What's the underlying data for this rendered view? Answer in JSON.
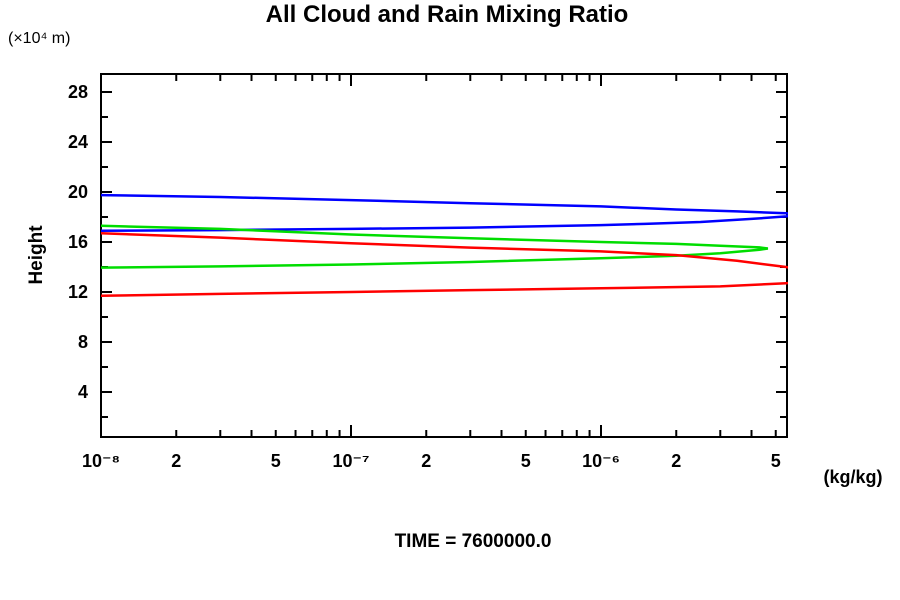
{
  "chart_data": {
    "type": "line",
    "title": "All Cloud and Rain Mixing Ratio",
    "footer": "TIME = 7600000.0",
    "x_scale": "log",
    "xlim": [
      1e-08,
      5.5e-06
    ],
    "ylim": [
      0,
      30
    ],
    "grid": false,
    "legend": "none",
    "x_axis": {
      "unit_label": "(kg/kg)",
      "decade_exponents": [
        -8,
        -7,
        -6
      ],
      "minor_multipliers": [
        2,
        3,
        4,
        5,
        6,
        7,
        8,
        9
      ],
      "tick_labels": [
        {
          "q": 1e-08,
          "text": "10⁻⁸"
        },
        {
          "q": 2e-08,
          "text": "2"
        },
        {
          "q": 5e-08,
          "text": "5"
        },
        {
          "q": 1e-07,
          "text": "10⁻⁷"
        },
        {
          "q": 2e-07,
          "text": "2"
        },
        {
          "q": 5e-07,
          "text": "5"
        },
        {
          "q": 1e-06,
          "text": "10⁻⁶"
        },
        {
          "q": 2e-06,
          "text": "2"
        },
        {
          "q": 5e-06,
          "text": "5"
        }
      ]
    },
    "y_axis": {
      "label": "Height",
      "unit_label": "(×10⁴ m)",
      "major_ticks": [
        4,
        8,
        12,
        16,
        20,
        24,
        28
      ],
      "minor_ticks": [
        2,
        6,
        10,
        14,
        18,
        22,
        26
      ]
    },
    "series": [
      {
        "name": "blue",
        "color": "#0000ff",
        "points": [
          [
            1e-08,
            19.75
          ],
          [
            3e-08,
            19.6
          ],
          [
            1e-07,
            19.35
          ],
          [
            3e-07,
            19.1
          ],
          [
            1e-06,
            18.85
          ],
          [
            2e-06,
            18.6
          ],
          [
            3.5e-06,
            18.45
          ],
          [
            5.5e-06,
            18.3
          ],
          [
            6.2e-06,
            18.18
          ],
          [
            5.5e-06,
            18.05
          ],
          [
            4e-06,
            17.85
          ],
          [
            2.5e-06,
            17.6
          ],
          [
            1.5e-06,
            17.45
          ],
          [
            1e-06,
            17.35
          ],
          [
            3e-07,
            17.15
          ],
          [
            1e-07,
            17.05
          ],
          [
            3e-08,
            16.95
          ],
          [
            1e-08,
            16.9
          ]
        ]
      },
      {
        "name": "green",
        "color": "#00dd00",
        "points": [
          [
            1e-08,
            17.3
          ],
          [
            3e-08,
            17.05
          ],
          [
            1e-07,
            16.6
          ],
          [
            3e-07,
            16.3
          ],
          [
            1e-06,
            16.0
          ],
          [
            2e-06,
            15.85
          ],
          [
            3e-06,
            15.7
          ],
          [
            4.3e-06,
            15.57
          ],
          [
            4.65e-06,
            15.48
          ],
          [
            4.3e-06,
            15.38
          ],
          [
            3e-06,
            15.1
          ],
          [
            2e-06,
            14.9
          ],
          [
            1e-06,
            14.7
          ],
          [
            3e-07,
            14.4
          ],
          [
            1e-07,
            14.2
          ],
          [
            3e-08,
            14.05
          ],
          [
            1e-08,
            13.95
          ]
        ]
      },
      {
        "name": "red",
        "color": "#ff0000",
        "points": [
          [
            1e-08,
            16.7
          ],
          [
            3e-08,
            16.35
          ],
          [
            1e-07,
            15.9
          ],
          [
            3e-07,
            15.55
          ],
          [
            1e-06,
            15.25
          ],
          [
            2e-06,
            14.95
          ],
          [
            3.5e-06,
            14.5
          ],
          [
            5.5e-06,
            14.0
          ],
          [
            7e-06,
            13.6
          ],
          [
            7.8e-06,
            13.3
          ],
          [
            7e-06,
            13.0
          ],
          [
            5.5e-06,
            12.7
          ],
          [
            3e-06,
            12.45
          ],
          [
            1e-06,
            12.3
          ],
          [
            3e-07,
            12.15
          ],
          [
            1e-07,
            12.0
          ],
          [
            3e-08,
            11.85
          ],
          [
            1e-08,
            11.7
          ]
        ]
      }
    ]
  }
}
